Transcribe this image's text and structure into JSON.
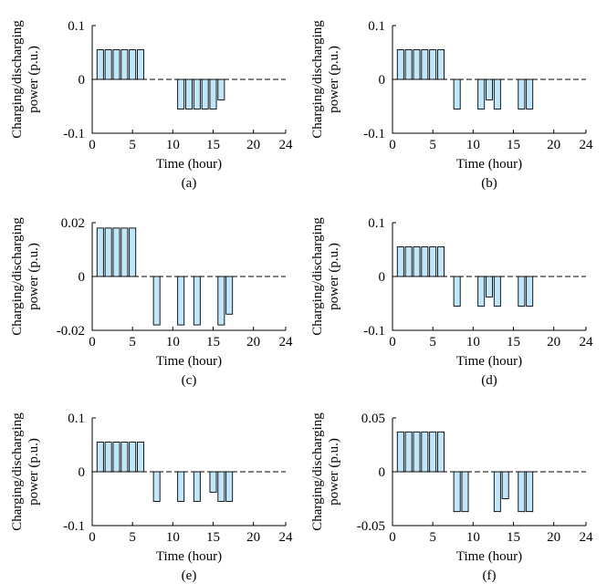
{
  "style": {
    "bar_color": "#bfe7fb",
    "axis_color": "#000000"
  },
  "chart_data": [
    {
      "type": "bar",
      "caption": "(a)",
      "xlabel": "Time (hour)",
      "ylabel_line1": "Charging/discharging",
      "ylabel_line2": "power (p.u.)",
      "xlim": [
        0,
        24
      ],
      "xticks": [
        0,
        5,
        10,
        15,
        20,
        24
      ],
      "ylim": [
        -0.1,
        0.1
      ],
      "yticks": [
        -0.1,
        0,
        0.1
      ],
      "ytick_labels": [
        "-0.1",
        "0",
        "0.1"
      ],
      "x": [
        1,
        2,
        3,
        4,
        5,
        6,
        11,
        12,
        13,
        14,
        15,
        16
      ],
      "values": [
        0.055,
        0.055,
        0.055,
        0.055,
        0.055,
        0.055,
        -0.055,
        -0.055,
        -0.055,
        -0.055,
        -0.055,
        -0.038
      ]
    },
    {
      "type": "bar",
      "caption": "(b)",
      "xlabel": "Time (hour)",
      "ylabel_line1": "Charging/discharging",
      "ylabel_line2": "power (p.u.)",
      "xlim": [
        0,
        24
      ],
      "xticks": [
        0,
        5,
        10,
        15,
        20,
        24
      ],
      "ylim": [
        -0.1,
        0.1
      ],
      "yticks": [
        -0.1,
        0,
        0.1
      ],
      "ytick_labels": [
        "-0.1",
        "0",
        "0.1"
      ],
      "x": [
        1,
        2,
        3,
        4,
        5,
        6,
        8,
        11,
        12,
        13,
        16,
        17
      ],
      "values": [
        0.055,
        0.055,
        0.055,
        0.055,
        0.055,
        0.055,
        -0.055,
        -0.055,
        -0.038,
        -0.055,
        -0.055,
        -0.055
      ]
    },
    {
      "type": "bar",
      "caption": "(c)",
      "xlabel": "Time (hour)",
      "ylabel_line1": "Charging/discharging",
      "ylabel_line2": "power (p.u.)",
      "xlim": [
        0,
        24
      ],
      "xticks": [
        0,
        5,
        10,
        15,
        20,
        24
      ],
      "ylim": [
        -0.02,
        0.02
      ],
      "yticks": [
        -0.02,
        0,
        0.02
      ],
      "ytick_labels": [
        "-0.02",
        "0",
        "0.02"
      ],
      "x": [
        1,
        2,
        3,
        4,
        5,
        8,
        11,
        13,
        16,
        17
      ],
      "values": [
        0.018,
        0.018,
        0.018,
        0.018,
        0.018,
        -0.018,
        -0.018,
        -0.018,
        -0.018,
        -0.014
      ]
    },
    {
      "type": "bar",
      "caption": "(d)",
      "xlabel": "Time (hour)",
      "ylabel_line1": "Charging/discharging",
      "ylabel_line2": "power (p.u.)",
      "xlim": [
        0,
        24
      ],
      "xticks": [
        0,
        5,
        10,
        15,
        20,
        24
      ],
      "ylim": [
        -0.1,
        0.1
      ],
      "yticks": [
        -0.1,
        0,
        0.1
      ],
      "ytick_labels": [
        "-0.1",
        "0",
        "0.1"
      ],
      "x": [
        1,
        2,
        3,
        4,
        5,
        6,
        8,
        11,
        12,
        13,
        16,
        17
      ],
      "values": [
        0.055,
        0.055,
        0.055,
        0.055,
        0.055,
        0.055,
        -0.055,
        -0.055,
        -0.038,
        -0.055,
        -0.055,
        -0.055
      ]
    },
    {
      "type": "bar",
      "caption": "(e)",
      "xlabel": "Time (hour)",
      "ylabel_line1": "Charging/discharging",
      "ylabel_line2": "power (p.u.)",
      "xlim": [
        0,
        24
      ],
      "xticks": [
        0,
        5,
        10,
        15,
        20,
        24
      ],
      "ylim": [
        -0.1,
        0.1
      ],
      "yticks": [
        -0.1,
        0,
        0.1
      ],
      "ytick_labels": [
        "-0.1",
        "0",
        "0.1"
      ],
      "x": [
        1,
        2,
        3,
        4,
        5,
        6,
        8,
        11,
        13,
        15,
        16,
        17
      ],
      "values": [
        0.055,
        0.055,
        0.055,
        0.055,
        0.055,
        0.055,
        -0.055,
        -0.055,
        -0.055,
        -0.038,
        -0.055,
        -0.055
      ]
    },
    {
      "type": "bar",
      "caption": "(f)",
      "xlabel": "Time (hour)",
      "ylabel_line1": "Charging/discharging",
      "ylabel_line2": "power (p.u.)",
      "xlim": [
        0,
        24
      ],
      "xticks": [
        0,
        5,
        10,
        15,
        20,
        24
      ],
      "ylim": [
        -0.05,
        0.05
      ],
      "yticks": [
        -0.05,
        0,
        0.05
      ],
      "ytick_labels": [
        "-0.05",
        "0",
        "0.05"
      ],
      "x": [
        1,
        2,
        3,
        4,
        5,
        6,
        8,
        9,
        13,
        14,
        16,
        17
      ],
      "values": [
        0.037,
        0.037,
        0.037,
        0.037,
        0.037,
        0.037,
        -0.037,
        -0.037,
        -0.037,
        -0.025,
        -0.037,
        -0.037
      ]
    }
  ]
}
